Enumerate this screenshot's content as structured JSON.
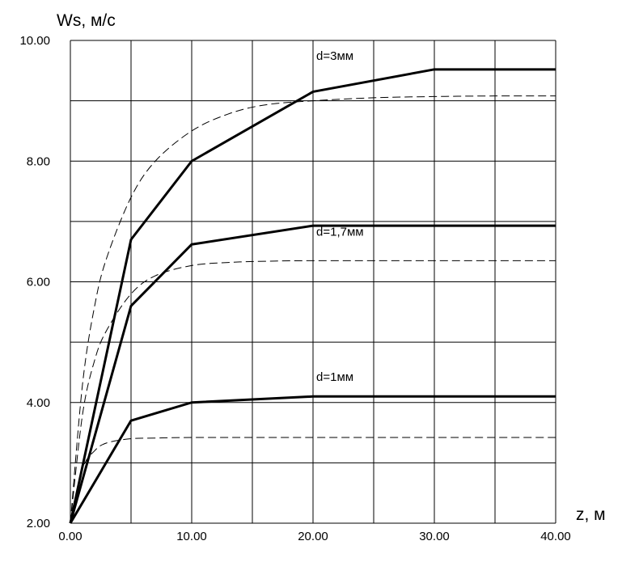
{
  "chart_data": {
    "type": "line",
    "title": "",
    "xlabel": "z,  м",
    "ylabel": "Ws,  м/с",
    "xlim": [
      0,
      40
    ],
    "ylim": [
      2,
      10
    ],
    "x_ticks": [
      "0.00",
      "10.00",
      "20.00",
      "30.00",
      "40.00"
    ],
    "y_ticks": [
      "2.00",
      "4.00",
      "6.00",
      "8.00",
      "10.00"
    ],
    "grid": true,
    "legend": "none",
    "series": [
      {
        "name": "d=3мм",
        "style": "solid",
        "x": [
          0,
          5,
          10,
          20,
          30,
          40
        ],
        "y": [
          2.0,
          6.7,
          8.0,
          9.15,
          9.52,
          9.52
        ]
      },
      {
        "name": "d=1,7мм",
        "style": "solid",
        "x": [
          0,
          5,
          10,
          20,
          30,
          40
        ],
        "y": [
          2.0,
          5.6,
          6.62,
          6.93,
          6.93,
          6.93
        ]
      },
      {
        "name": "d=1мм",
        "style": "solid",
        "x": [
          0,
          5,
          10,
          20,
          30,
          40
        ],
        "y": [
          2.0,
          3.7,
          4.0,
          4.1,
          4.1,
          4.1
        ]
      },
      {
        "name": "",
        "style": "dashed",
        "x": [
          0,
          1,
          2,
          3,
          5,
          7,
          10,
          13,
          16,
          20,
          25,
          30,
          35,
          40
        ],
        "y": [
          2.0,
          4.3,
          5.6,
          6.4,
          7.4,
          8.0,
          8.5,
          8.78,
          8.93,
          9.0,
          9.05,
          9.07,
          9.08,
          9.08
        ]
      },
      {
        "name": "",
        "style": "dashed",
        "x": [
          0,
          1,
          2,
          3,
          5,
          7,
          10,
          13,
          16,
          20,
          30,
          40
        ],
        "y": [
          2.0,
          3.8,
          4.7,
          5.2,
          5.8,
          6.1,
          6.27,
          6.32,
          6.34,
          6.35,
          6.35,
          6.35
        ]
      },
      {
        "name": "",
        "style": "dashed",
        "x": [
          0,
          1,
          2,
          3,
          5,
          7,
          10,
          20,
          30,
          40
        ],
        "y": [
          2.0,
          2.9,
          3.2,
          3.33,
          3.4,
          3.41,
          3.42,
          3.42,
          3.42,
          3.42
        ]
      }
    ],
    "colors": {
      "line": "#000000",
      "grid": "#000000"
    }
  }
}
